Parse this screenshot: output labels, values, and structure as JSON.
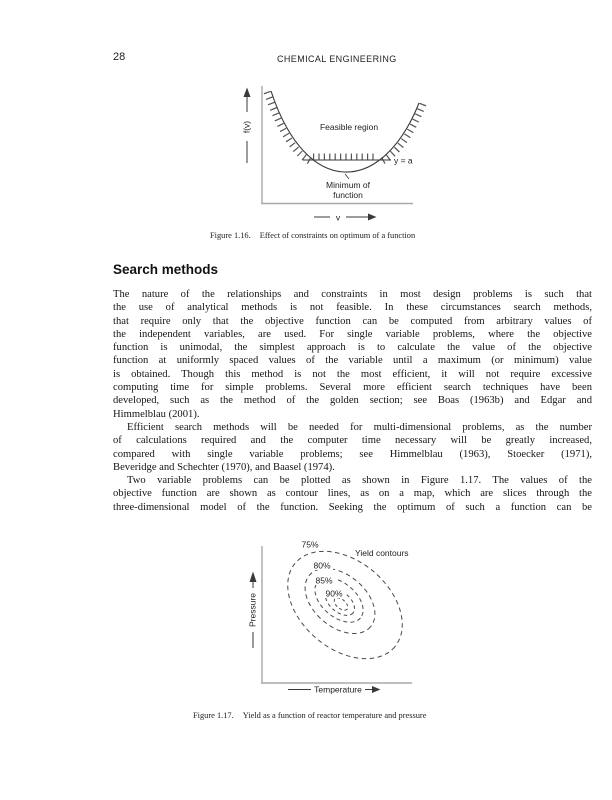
{
  "page": {
    "number": "28",
    "running_head": "CHEMICAL ENGINEERING"
  },
  "figure116": {
    "y_axis_label": "f(v)",
    "x_axis_label": "v",
    "feasible_label": "Feasible region",
    "constraint_label": "y = a",
    "min_label_1": "Minimum of",
    "min_label_2": "function",
    "caption_number": "Figure 1.16.",
    "caption": "Effect of constraints on optimum of a function"
  },
  "section": {
    "heading": "Search methods"
  },
  "body": {
    "lines": [
      {
        "t": "The nature of the relationships and constraints in most design problems is such that",
        "indent": false,
        "last": false
      },
      {
        "t": "the use of analytical methods is not feasible. In these circumstances search methods,",
        "indent": false,
        "last": false
      },
      {
        "t": "that require only that the objective function can be computed from arbitrary values of",
        "indent": false,
        "last": false
      },
      {
        "t": "the independent variables, are used. For single variable problems, where the objective",
        "indent": false,
        "last": false
      },
      {
        "t": "function is unimodal, the simplest approach is to calculate the value of the objective",
        "indent": false,
        "last": false
      },
      {
        "t": "function at uniformly spaced values of the variable until a maximum (or minimum) value",
        "indent": false,
        "last": false
      },
      {
        "t": "is obtained. Though this method is not the most efficient, it will not require excessive",
        "indent": false,
        "last": false
      },
      {
        "t": "computing time for simple problems. Several more efficient search techniques have been",
        "indent": false,
        "last": false
      },
      {
        "t": "developed, such as the method of the golden section; see Boas (1963b) and Edgar and",
        "indent": false,
        "last": false
      },
      {
        "t": "Himmelblau (2001).",
        "indent": false,
        "last": true
      },
      {
        "t": "Efficient search methods will be needed for multi-dimensional problems, as the number",
        "indent": true,
        "last": false
      },
      {
        "t": "of calculations required and the computer time necessary will be greatly increased,",
        "indent": false,
        "last": false
      },
      {
        "t": "compared with single variable problems; see Himmelblau (1963), Stoecker (1971),",
        "indent": false,
        "last": false
      },
      {
        "t": "Beveridge and Schechter (1970), and Baasel (1974).",
        "indent": false,
        "last": true
      },
      {
        "t": "Two variable problems can be plotted as shown in Figure 1.17. The values of the",
        "indent": true,
        "last": false
      },
      {
        "t": "objective function are shown as contour lines, as on a map, which are slices through the",
        "indent": false,
        "last": false
      },
      {
        "t": "three-dimensional model of the function. Seeking the optimum of such a function can be",
        "indent": false,
        "last": false
      }
    ]
  },
  "figure117": {
    "y_axis_label": "Pressure",
    "x_axis_label": "Temperature",
    "legend": "Yield contours",
    "contours": [
      "75%",
      "80%",
      "85%",
      "90%"
    ],
    "caption_number": "Figure 1.17.",
    "caption": "Yield as a function of reactor temperature and pressure"
  },
  "colors": {
    "axis_gray": "#a8a8a8",
    "ink": "#1a1a1a",
    "line_dark": "#3a3a3a"
  }
}
